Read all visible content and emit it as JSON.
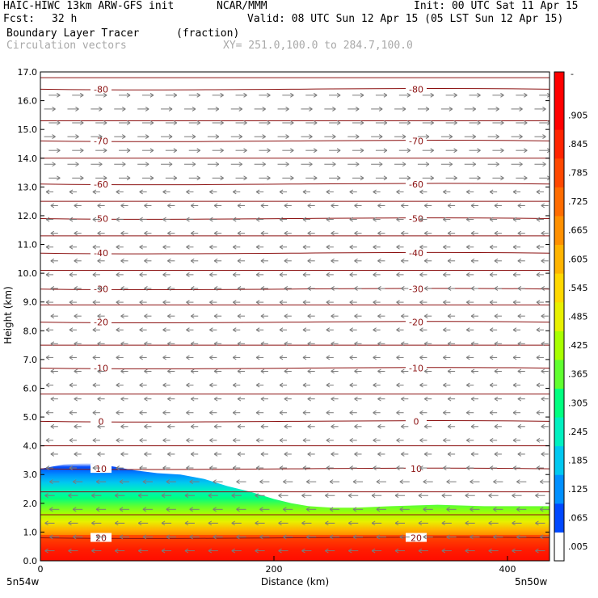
{
  "header": {
    "model": "HAIC-HIWC 13km ARW-GFS init",
    "org": "NCAR/MMM",
    "init": "Init: 00 UTC Sat 11 Apr 15",
    "fcst_label": "Fcst:",
    "fcst_value": "32 h",
    "valid": "Valid: 08 UTC Sun 12 Apr 15 (05 LST Sun 12 Apr 15)",
    "field": "Boundary Layer Tracer",
    "field_units": "(fraction)",
    "vectors": "Circulation vectors",
    "xy": "XY= 251.0,100.0 to 284.7,100.0"
  },
  "chart_data": {
    "type": "heatmap",
    "xlabel": "Distance (km)",
    "ylabel": "Height (km)",
    "xlim": [
      0,
      436
    ],
    "ylim": [
      0,
      17
    ],
    "x_ticks": [
      0,
      200,
      400
    ],
    "y_ticks": [
      "0.0",
      "1.0",
      "2.0",
      "3.0",
      "4.0",
      "5.0",
      "6.0",
      "7.0",
      "8.0",
      "9.0",
      "10.0",
      "11.0",
      "12.0",
      "13.0",
      "14.0",
      "15.0",
      "16.0",
      "17.0"
    ],
    "x_end_labels": [
      "5n54w",
      "5n50w"
    ],
    "colorbar": {
      "labels": [
        ".005",
        ".065",
        ".125",
        ".185",
        ".245",
        ".305",
        ".365",
        ".425",
        ".485",
        ".545",
        ".605",
        ".665",
        ".725",
        ".785",
        ".845",
        ".905"
      ],
      "top_label": "-",
      "colors": [
        "#ffffff",
        "#0048ff",
        "#0090ff",
        "#00c8f0",
        "#00f0c0",
        "#00ff80",
        "#60ff30",
        "#a8ff00",
        "#e8f000",
        "#ffd800",
        "#ffb400",
        "#ff9000",
        "#ff6c00",
        "#ff4800",
        "#ff2400",
        "#ff0000",
        "#ff0000"
      ]
    },
    "pbl_top_km": [
      {
        "x": 0,
        "y": 3.2
      },
      {
        "x": 20,
        "y": 3.35
      },
      {
        "x": 40,
        "y": 3.4
      },
      {
        "x": 60,
        "y": 3.3
      },
      {
        "x": 80,
        "y": 3.15
      },
      {
        "x": 100,
        "y": 3.05
      },
      {
        "x": 120,
        "y": 3.0
      },
      {
        "x": 140,
        "y": 2.85
      },
      {
        "x": 160,
        "y": 2.6
      },
      {
        "x": 180,
        "y": 2.4
      },
      {
        "x": 200,
        "y": 2.15
      },
      {
        "x": 215,
        "y": 2.0
      },
      {
        "x": 230,
        "y": 1.9
      },
      {
        "x": 250,
        "y": 1.85
      },
      {
        "x": 270,
        "y": 1.85
      },
      {
        "x": 300,
        "y": 1.9
      },
      {
        "x": 340,
        "y": 1.95
      },
      {
        "x": 380,
        "y": 1.9
      },
      {
        "x": 436,
        "y": 1.9
      }
    ],
    "temperature_contours": {
      "units": "C",
      "levels": [
        {
          "value": -80,
          "z_left": 16.4,
          "z_right": 16.4,
          "label": "-80"
        },
        {
          "value": -70,
          "z_left": 14.6,
          "z_right": 14.6,
          "label": "-70"
        },
        {
          "value": -60,
          "z_left": 13.1,
          "z_right": 13.1,
          "label": "-60"
        },
        {
          "value": -50,
          "z_left": 11.9,
          "z_right": 11.9,
          "label": "-50"
        },
        {
          "value": -40,
          "z_left": 10.7,
          "z_right": 10.7,
          "label": "-40"
        },
        {
          "value": -30,
          "z_left": 9.45,
          "z_right": 9.45,
          "label": "-30"
        },
        {
          "value": -20,
          "z_left": 8.3,
          "z_right": 8.3,
          "label": "-20"
        },
        {
          "value": -10,
          "z_left": 6.7,
          "z_right": 6.7,
          "label": "-10"
        },
        {
          "value": 0,
          "z_left": 4.85,
          "z_right": 4.85,
          "label": "0"
        },
        {
          "value": 10,
          "z_left": 3.2,
          "z_right": 3.2,
          "label": "10"
        },
        {
          "value": 20,
          "z_left": 0.8,
          "z_right": 0.8,
          "label": "20"
        }
      ],
      "extra_lines_km": [
        16.8,
        15.3,
        14.0,
        12.5,
        11.3,
        10.1,
        8.9,
        7.5,
        5.8,
        4.0,
        2.4,
        1.6
      ]
    },
    "wind": {
      "upper_direction": "eastward",
      "lower_direction": "westward",
      "reversal_km": 13.2
    }
  }
}
